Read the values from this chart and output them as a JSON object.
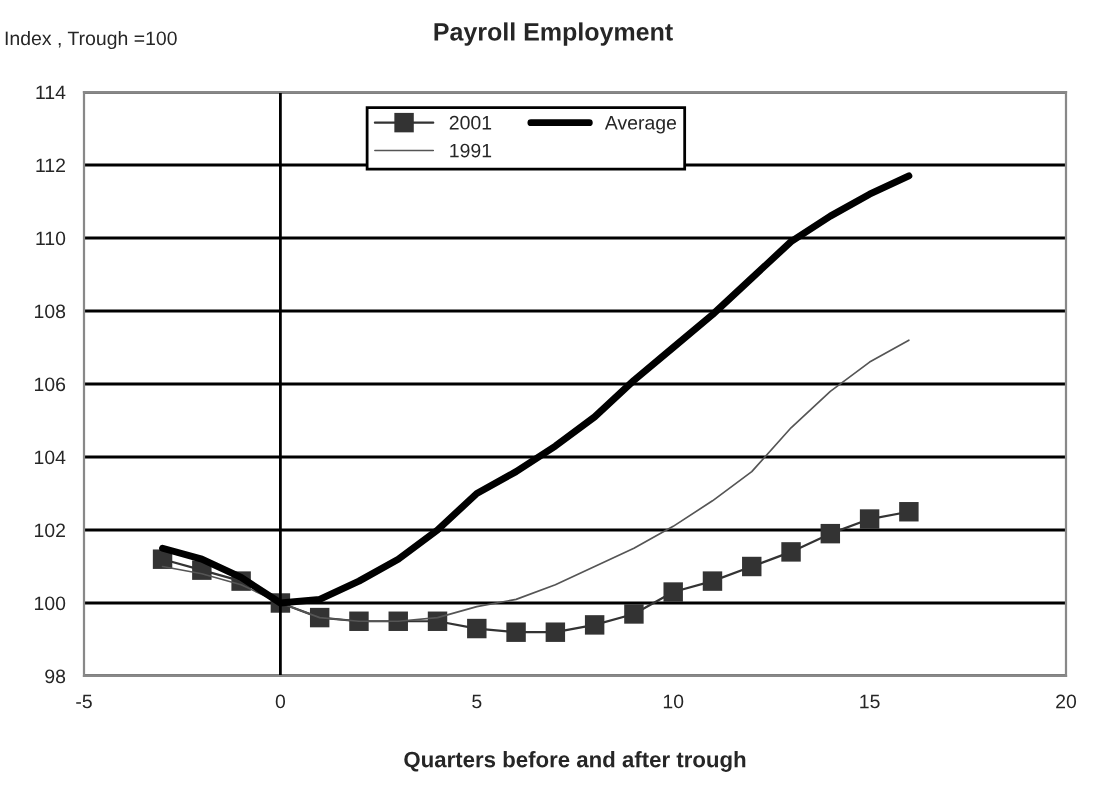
{
  "chart_data": {
    "type": "line",
    "title": "Payroll Employment",
    "ylabel": "Index , Trough =100",
    "xlabel": "Quarters before and after trough",
    "x": [
      -3,
      -2,
      -1,
      0,
      1,
      2,
      3,
      4,
      5,
      6,
      7,
      8,
      9,
      10,
      11,
      12,
      13,
      14,
      15,
      16
    ],
    "series": [
      {
        "name": "2001",
        "color": "#333333",
        "marker": "square",
        "values": [
          101.2,
          100.9,
          100.6,
          100.0,
          99.6,
          99.5,
          99.5,
          99.5,
          99.3,
          99.2,
          99.2,
          99.4,
          99.7,
          100.3,
          100.6,
          101.0,
          101.4,
          101.9,
          102.3,
          102.5
        ]
      },
      {
        "name": "1991",
        "color": "#555555",
        "marker": "none",
        "values": [
          101.0,
          100.8,
          100.5,
          100.0,
          99.6,
          99.5,
          99.5,
          99.6,
          99.9,
          100.1,
          100.5,
          101.0,
          101.5,
          102.1,
          102.8,
          103.6,
          104.8,
          105.8,
          106.6,
          107.2
        ]
      },
      {
        "name": "Average",
        "color": "#000000",
        "marker": "none",
        "values": [
          101.5,
          101.2,
          100.7,
          100.0,
          100.1,
          100.6,
          101.2,
          102.0,
          103.0,
          103.6,
          104.3,
          105.1,
          106.1,
          107.0,
          107.9,
          108.9,
          109.9,
          110.6,
          111.2,
          111.7
        ]
      }
    ],
    "xlim": [
      -5,
      20
    ],
    "xticks": [
      -5,
      0,
      5,
      10,
      15,
      20
    ],
    "ylim": [
      98,
      114
    ],
    "yticks": [
      98,
      100,
      102,
      104,
      106,
      108,
      110,
      112,
      114
    ],
    "grid": "y",
    "legend": "top",
    "line_style": "solid",
    "ref_lines": [
      {
        "axis": "x",
        "value": 0,
        "color": "#000000"
      }
    ]
  }
}
